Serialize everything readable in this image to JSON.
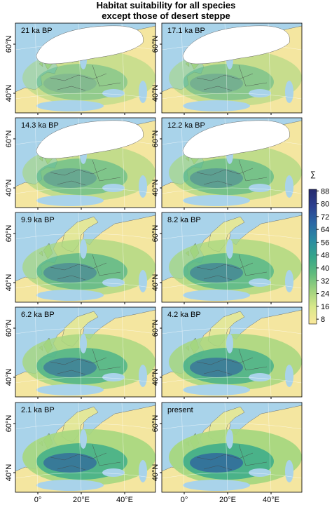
{
  "title": [
    "Habitat suitability for all species",
    "except those of desert steppe"
  ],
  "panels": [
    {
      "label": "21 ka BP",
      "ice": true
    },
    {
      "label": "17.1 ka BP",
      "ice": true
    },
    {
      "label": "14.3 ka BP",
      "ice": true
    },
    {
      "label": "12.2 ka BP",
      "ice": true
    },
    {
      "label": "9.9 ka BP",
      "ice": false
    },
    {
      "label": "8.2 ka BP",
      "ice": false
    },
    {
      "label": "6.2 ka BP",
      "ice": false
    },
    {
      "label": "4.2 ka BP",
      "ice": false
    },
    {
      "label": "2.1 ka BP",
      "ice": false
    },
    {
      "label": "present",
      "ice": false
    }
  ],
  "axes": {
    "lat_labels": [
      "60°N",
      "40°N"
    ],
    "lon_labels": [
      "0°",
      "20°E",
      "40°E"
    ]
  },
  "legend": {
    "symbol": "∑",
    "lim": [
      5,
      89
    ],
    "ticks": [
      8,
      16,
      24,
      32,
      40,
      48,
      56,
      64,
      72,
      80,
      88
    ],
    "colors": [
      "#fbe89c",
      "#d9e88a",
      "#9fd27e",
      "#5fba7d",
      "#34a58a",
      "#2a8aa3",
      "#2b67a5",
      "#2c3f8f",
      "#252a6e"
    ]
  }
}
